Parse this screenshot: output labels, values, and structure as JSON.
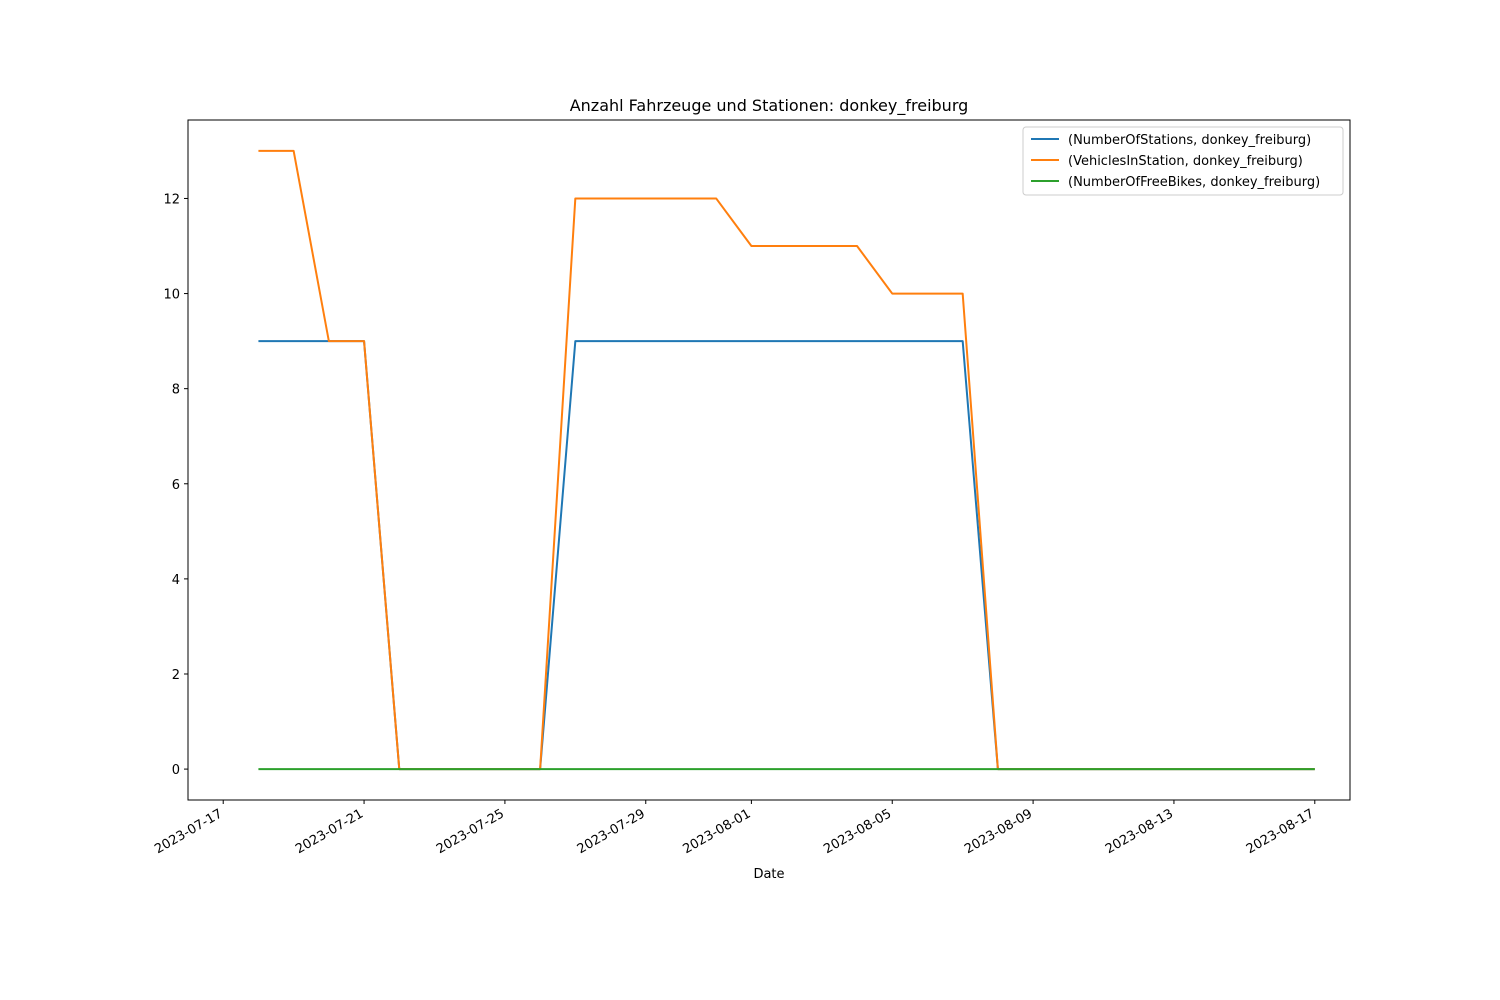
{
  "chart_data": {
    "type": "line",
    "title": "Anzahl Fahrzeuge und Stationen: donkey_freiburg",
    "xlabel": "Date",
    "ylabel": "",
    "x_type": "date",
    "xlim": [
      "2023-07-16",
      "2023-08-18"
    ],
    "ylim": [
      -0.65,
      13.65
    ],
    "x_ticks": [
      "2023-07-17",
      "2023-07-21",
      "2023-07-25",
      "2023-07-29",
      "2023-08-01",
      "2023-08-05",
      "2023-08-09",
      "2023-08-13",
      "2023-08-17"
    ],
    "y_ticks": [
      0,
      2,
      4,
      6,
      8,
      10,
      12
    ],
    "grid": false,
    "legend_position": "top-right",
    "x": [
      "2023-07-18",
      "2023-07-19",
      "2023-07-20",
      "2023-07-21",
      "2023-07-22",
      "2023-07-23",
      "2023-07-24",
      "2023-07-25",
      "2023-07-26",
      "2023-07-27",
      "2023-07-28",
      "2023-07-29",
      "2023-07-30",
      "2023-07-31",
      "2023-08-01",
      "2023-08-02",
      "2023-08-03",
      "2023-08-04",
      "2023-08-05",
      "2023-08-06",
      "2023-08-07",
      "2023-08-08",
      "2023-08-09",
      "2023-08-10",
      "2023-08-11",
      "2023-08-12",
      "2023-08-13",
      "2023-08-14",
      "2023-08-15",
      "2023-08-16",
      "2023-08-17"
    ],
    "series": [
      {
        "name": "(NumberOfStations, donkey_freiburg)",
        "color": "#1f77b4",
        "values": [
          9,
          9,
          9,
          9,
          0,
          0,
          0,
          0,
          0,
          9,
          9,
          9,
          9,
          9,
          9,
          9,
          9,
          9,
          9,
          9,
          9,
          0,
          0,
          0,
          0,
          0,
          0,
          0,
          0,
          0,
          0
        ]
      },
      {
        "name": "(VehiclesInStation, donkey_freiburg)",
        "color": "#ff7f0e",
        "values": [
          13,
          13,
          9,
          9,
          0,
          0,
          0,
          0,
          0,
          12,
          12,
          12,
          12,
          12,
          11,
          11,
          11,
          11,
          10,
          10,
          10,
          0,
          0,
          0,
          0,
          0,
          0,
          0,
          0,
          0,
          0
        ]
      },
      {
        "name": "(NumberOfFreeBikes, donkey_freiburg)",
        "color": "#2ca02c",
        "values": [
          0,
          0,
          0,
          0,
          0,
          0,
          0,
          0,
          0,
          0,
          0,
          0,
          0,
          0,
          0,
          0,
          0,
          0,
          0,
          0,
          0,
          0,
          0,
          0,
          0,
          0,
          0,
          0,
          0,
          0,
          0
        ]
      }
    ]
  }
}
